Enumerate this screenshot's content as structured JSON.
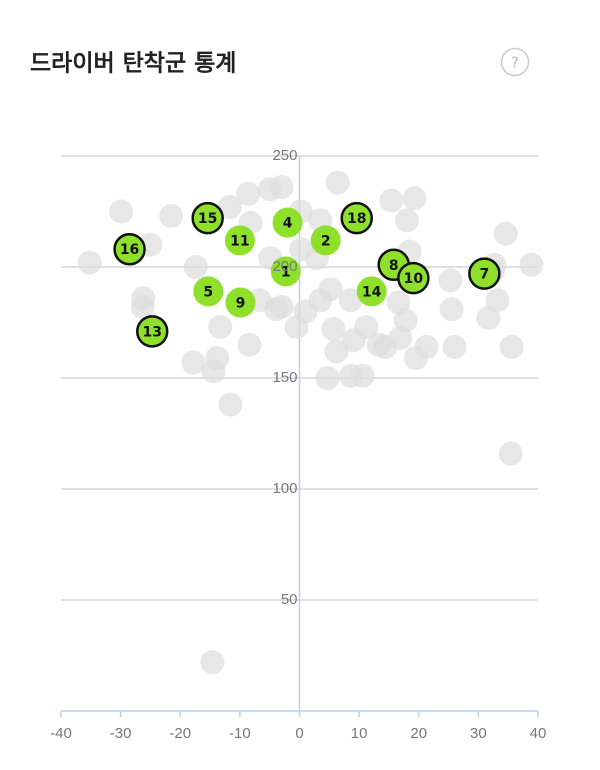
{
  "help": "?",
  "chart_data": {
    "type": "scatter",
    "title": "드라이버 탄착군 통계",
    "xlim": [
      -40,
      40
    ],
    "xticks": [
      -40,
      -30,
      -20,
      -10,
      0,
      10,
      20,
      30,
      40
    ],
    "ylim": [
      0,
      250
    ],
    "yticks": [
      50,
      100,
      150,
      200,
      250
    ],
    "grid": true,
    "series": [
      {
        "color": "#dddddd",
        "x": [
          -29.9,
          -35.2,
          -25.0,
          -21.5,
          -17.4,
          -26.2,
          -26.3,
          -17.8,
          -14.4,
          -13.8,
          -13.3,
          -11.6,
          -8.4,
          -8.6,
          -11.7,
          -8.2,
          -5.0,
          -3.0,
          0.2,
          6.4,
          0.3,
          -4.9,
          -3.9,
          -0.5,
          1.0,
          3.5,
          5.7,
          6.2,
          4.7,
          9.1,
          8.6,
          10.6,
          11.2,
          13.3,
          14.4,
          16.9,
          17.8,
          16.6,
          15.4,
          19.3,
          18.0,
          18.5,
          19.5,
          21.3,
          26.0,
          25.5,
          32.7,
          32.4,
          34.6,
          33.2,
          31.7,
          35.6,
          38.9,
          35.4,
          -14.6,
          25.3,
          -3.0,
          2.9,
          5.2,
          8.6,
          -6.7,
          3.5
        ],
        "values": [
          225,
          202,
          210,
          223,
          200,
          186,
          182,
          157,
          153,
          159,
          173,
          138,
          165,
          233,
          227,
          220,
          235,
          236,
          225,
          238,
          208,
          204,
          181,
          173,
          180,
          185,
          172,
          162,
          150,
          167,
          151,
          151,
          173,
          165,
          164,
          168,
          176,
          184,
          230,
          231,
          221,
          207,
          159,
          164,
          164,
          181,
          201,
          198,
          215,
          185,
          177,
          164,
          201,
          116,
          22,
          194,
          182,
          204,
          190,
          185,
          185,
          221
        ]
      },
      {
        "color": "#8ee02a",
        "labels": [
          "1",
          "2",
          "4",
          "5",
          "7",
          "8",
          "9",
          "10",
          "11",
          "13",
          "14",
          "15",
          "16",
          "18"
        ],
        "x": [
          -2.3,
          4.4,
          -2.0,
          -15.3,
          31.0,
          15.8,
          -9.9,
          19.1,
          -10.0,
          -24.7,
          12.1,
          -15.4,
          -28.5,
          9.6
        ],
        "values": [
          198,
          212,
          220,
          189,
          197,
          201,
          184,
          195,
          212,
          171,
          189,
          222,
          208,
          222
        ],
        "outlined": [
          false,
          false,
          false,
          false,
          true,
          true,
          false,
          true,
          false,
          true,
          false,
          true,
          true,
          true
        ]
      }
    ]
  }
}
